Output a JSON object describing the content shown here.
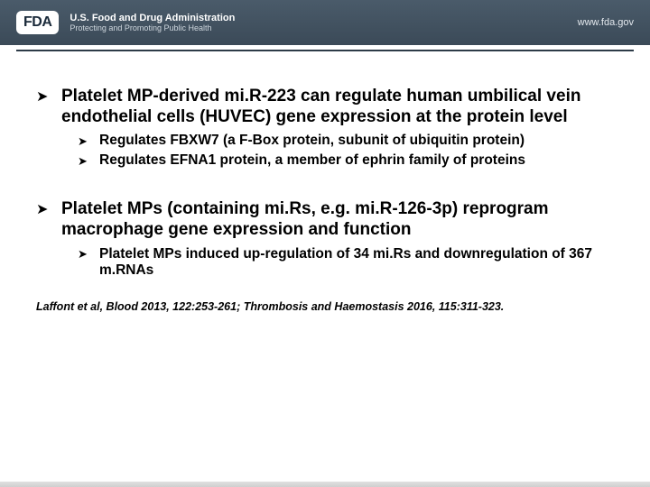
{
  "header": {
    "logo_text": "FDA",
    "line1": "U.S. Food and Drug Administration",
    "line2": "Protecting and Promoting Public Health",
    "url": "www.fda.gov"
  },
  "bullets": [
    {
      "text": "Platelet MP-derived mi.R-223 can regulate human umbilical vein endothelial cells (HUVEC) gene expression at the protein level",
      "sub": [
        "Regulates FBXW7 (a F-Box protein, subunit of ubiquitin protein)",
        "Regulates EFNA1 protein, a member of ephrin family of proteins"
      ]
    },
    {
      "text": "Platelet MPs (containing mi.Rs, e.g. mi.R-126-3p) reprogram macrophage gene expression and function",
      "sub": [
        "Platelet MPs induced up-regulation of 34 mi.Rs and downregulation of 367 m.RNAs"
      ]
    }
  ],
  "citation": "Laffont et al, Blood 2013, 122:253-261; Thrombosis and Haemostasis 2016, 115:311-323.",
  "colors": {
    "header_bg_top": "#4a5b6a",
    "header_bg_bottom": "#3b4a58",
    "rule": "#2d3b48",
    "text": "#000000",
    "bg": "#ffffff"
  }
}
